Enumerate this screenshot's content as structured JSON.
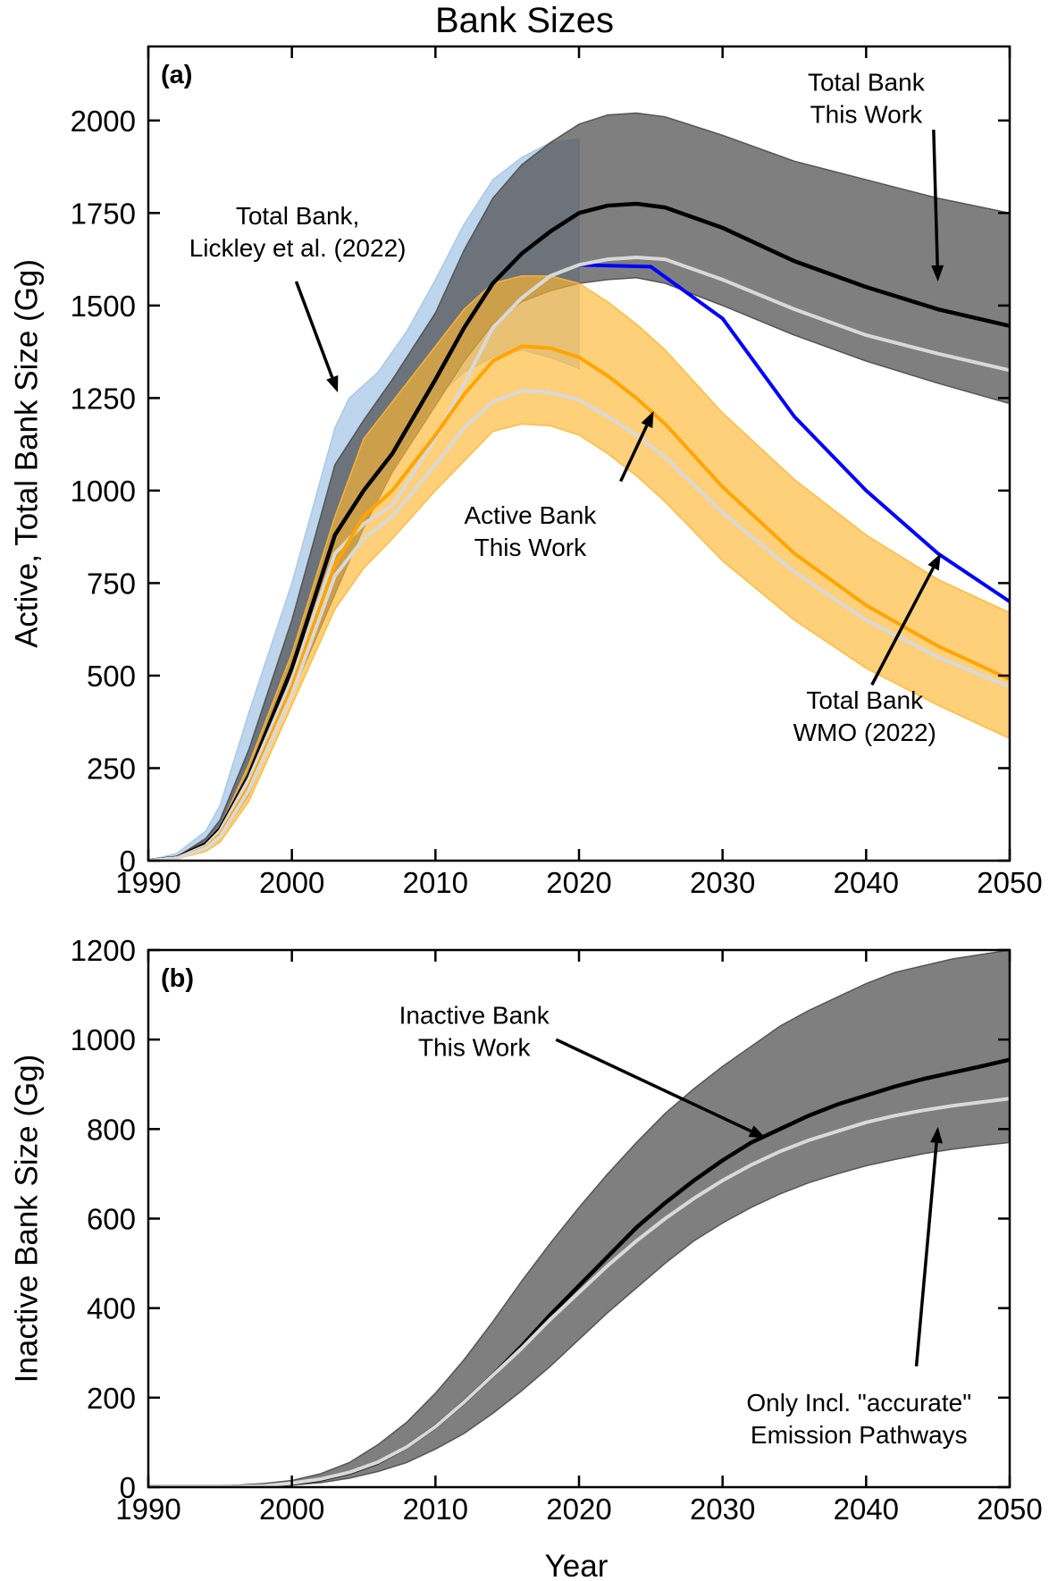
{
  "figure": {
    "title": "Bank Sizes",
    "xlabel": "Year"
  },
  "colors": {
    "this_work_line": "#000000",
    "this_work_band": "#4d4d4d",
    "accurate_pathways_line": "#d9d9d9",
    "active_line": "#ffa500",
    "active_band": "#ffb733",
    "lickley_band": "#a7c7e7",
    "wmo_line": "#0000ff"
  },
  "chart_data": [
    {
      "id": "panel_a",
      "type": "area",
      "panel_label": "(a)",
      "ylabel": "Active, Total Bank Size (Gg)",
      "xlim": [
        1990,
        2050
      ],
      "ylim": [
        0,
        2200
      ],
      "xticks": [
        1990,
        2000,
        2010,
        2020,
        2030,
        2040,
        2050
      ],
      "yticks": [
        0,
        250,
        500,
        750,
        1000,
        1250,
        1500,
        1750,
        2000
      ],
      "grid": false,
      "bands": [
        {
          "name": "Total Bank, Lickley et al. (2022)",
          "color": "#a7c7e7",
          "opacity": 0.75,
          "x": [
            1990,
            1992,
            1994,
            1995,
            1997,
            2000,
            2003,
            2004,
            2006,
            2008,
            2010,
            2012,
            2014,
            2016,
            2018,
            2020
          ],
          "lower": [
            0,
            10,
            40,
            80,
            220,
            480,
            720,
            830,
            990,
            1130,
            1250,
            1320,
            1360,
            1380,
            1360,
            1330
          ],
          "upper": [
            0,
            20,
            80,
            150,
            400,
            750,
            1170,
            1250,
            1320,
            1430,
            1570,
            1720,
            1840,
            1900,
            1940,
            1950
          ]
        },
        {
          "name": "Total Bank This Work",
          "color": "#4d4d4d",
          "opacity": 0.72,
          "x": [
            1990,
            1992,
            1994,
            1995,
            1997,
            2000,
            2003,
            2005,
            2007,
            2010,
            2012,
            2014,
            2016,
            2018,
            2020,
            2022,
            2024,
            2026,
            2030,
            2035,
            2040,
            2045,
            2050
          ],
          "lower": [
            0,
            5,
            30,
            60,
            180,
            450,
            720,
            900,
            1050,
            1230,
            1350,
            1450,
            1510,
            1540,
            1560,
            1570,
            1575,
            1560,
            1500,
            1420,
            1350,
            1290,
            1235
          ],
          "upper": [
            0,
            10,
            60,
            110,
            300,
            650,
            1070,
            1190,
            1300,
            1480,
            1650,
            1790,
            1880,
            1940,
            1990,
            2015,
            2020,
            2010,
            1960,
            1890,
            1840,
            1790,
            1750
          ]
        },
        {
          "name": "Active Bank This Work",
          "color": "#ffb733",
          "opacity": 0.65,
          "x": [
            1990,
            1992,
            1994,
            1995,
            1997,
            2000,
            2003,
            2005,
            2007,
            2010,
            2012,
            2014,
            2016,
            2018,
            2020,
            2022,
            2024,
            2026,
            2030,
            2035,
            2040,
            2045,
            2050
          ],
          "lower": [
            0,
            5,
            25,
            50,
            160,
            420,
            680,
            790,
            870,
            1000,
            1080,
            1160,
            1180,
            1175,
            1150,
            1100,
            1040,
            970,
            810,
            650,
            520,
            420,
            330
          ],
          "upper": [
            0,
            10,
            45,
            90,
            260,
            560,
            930,
            1140,
            1240,
            1390,
            1490,
            1560,
            1580,
            1580,
            1560,
            1510,
            1450,
            1380,
            1210,
            1030,
            880,
            760,
            670
          ]
        }
      ],
      "lines": [
        {
          "name": "Total Bank WMO (2022)",
          "color": "#0000ff",
          "width": 4,
          "x": [
            2020,
            2025,
            2030,
            2035,
            2040,
            2045,
            2050
          ],
          "y": [
            1610,
            1605,
            1465,
            1200,
            1000,
            830,
            700
          ]
        },
        {
          "name": "Total Bank This Work",
          "color": "#000000",
          "width": 4.5,
          "x": [
            1990,
            1992,
            1994,
            1995,
            1997,
            2000,
            2003,
            2005,
            2007,
            2010,
            2012,
            2014,
            2016,
            2018,
            2020,
            2022,
            2024,
            2026,
            2030,
            2035,
            2040,
            2045,
            2050
          ],
          "y": [
            0,
            8,
            45,
            85,
            230,
            520,
            880,
            1000,
            1100,
            1300,
            1440,
            1560,
            1640,
            1700,
            1750,
            1770,
            1775,
            1765,
            1710,
            1620,
            1550,
            1490,
            1445
          ]
        },
        {
          "name": "Total Bank (accurate pathways)",
          "color": "#d9d9d9",
          "width": 4,
          "x": [
            1990,
            1992,
            1994,
            1995,
            1997,
            2000,
            2003,
            2005,
            2007,
            2010,
            2012,
            2014,
            2016,
            2018,
            2020,
            2022,
            2024,
            2026,
            2030,
            2035,
            2040,
            2045,
            2050
          ],
          "y": [
            0,
            7,
            40,
            80,
            220,
            490,
            830,
            910,
            960,
            1140,
            1290,
            1440,
            1520,
            1580,
            1610,
            1625,
            1630,
            1625,
            1570,
            1490,
            1420,
            1370,
            1325
          ]
        },
        {
          "name": "Active Bank This Work",
          "color": "#ffa500",
          "width": 4,
          "x": [
            1990,
            1992,
            1994,
            1995,
            1997,
            2000,
            2003,
            2005,
            2007,
            2010,
            2012,
            2014,
            2016,
            2018,
            2020,
            2022,
            2024,
            2026,
            2030,
            2035,
            2040,
            2045,
            2050
          ],
          "y": [
            0,
            7,
            35,
            70,
            200,
            470,
            800,
            930,
            1000,
            1150,
            1260,
            1350,
            1390,
            1385,
            1360,
            1310,
            1250,
            1180,
            1010,
            830,
            690,
            580,
            490
          ]
        },
        {
          "name": "Active Bank (accurate pathways)",
          "color": "#d9d9d9",
          "width": 4,
          "x": [
            1990,
            1992,
            1994,
            1995,
            1997,
            2000,
            2003,
            2005,
            2007,
            2010,
            2012,
            2014,
            2016,
            2018,
            2020,
            2022,
            2024,
            2026,
            2030,
            2035,
            2040,
            2045,
            2050
          ],
          "y": [
            0,
            7,
            33,
            65,
            190,
            450,
            770,
            870,
            930,
            1070,
            1170,
            1240,
            1270,
            1265,
            1245,
            1200,
            1150,
            1090,
            940,
            780,
            650,
            550,
            470
          ]
        }
      ],
      "annotations": [
        {
          "lines": [
            "Total Bank",
            "This Work"
          ],
          "text_x": 2040,
          "text_y": 2080,
          "arrow_from": [
            2044.7,
            1975
          ],
          "arrow_to": [
            2045,
            1565
          ]
        },
        {
          "lines": [
            "Total Bank,",
            "Lickley et al. (2022)"
          ],
          "text_x": 2000.4,
          "text_y": 1720,
          "arrow_from": [
            2000.3,
            1565
          ],
          "arrow_to": [
            2003.2,
            1265
          ]
        },
        {
          "lines": [
            "Active Bank",
            "This Work"
          ],
          "text_x": 2016.6,
          "text_y": 910,
          "arrow_from": [
            2022.9,
            1025
          ],
          "arrow_to": [
            2025.2,
            1215
          ]
        },
        {
          "lines": [
            "Total Bank",
            "WMO (2022)"
          ],
          "text_x": 2039.9,
          "text_y": 410,
          "arrow_from": [
            2040.4,
            475
          ],
          "arrow_to": [
            2045.2,
            830
          ]
        }
      ]
    },
    {
      "id": "panel_b",
      "type": "area",
      "panel_label": "(b)",
      "ylabel": "Inactive Bank Size (Gg)",
      "xlim": [
        1990,
        2050
      ],
      "ylim": [
        0,
        1200
      ],
      "xticks": [
        1990,
        2000,
        2010,
        2020,
        2030,
        2040,
        2050
      ],
      "yticks": [
        0,
        200,
        400,
        600,
        800,
        1000,
        1200
      ],
      "grid": false,
      "bands": [
        {
          "name": "Inactive Bank This Work",
          "color": "#4d4d4d",
          "opacity": 0.72,
          "x": [
            1990,
            1995,
            1998,
            2000,
            2002,
            2004,
            2006,
            2008,
            2010,
            2012,
            2014,
            2016,
            2018,
            2020,
            2022,
            2024,
            2026,
            2028,
            2030,
            2032,
            2034,
            2036,
            2038,
            2040,
            2042,
            2044,
            2046,
            2048,
            2050
          ],
          "lower": [
            0,
            0,
            2,
            5,
            10,
            20,
            35,
            55,
            85,
            120,
            165,
            215,
            270,
            330,
            390,
            445,
            500,
            550,
            590,
            625,
            655,
            680,
            700,
            718,
            732,
            745,
            755,
            763,
            770
          ],
          "upper": [
            0,
            2,
            8,
            15,
            30,
            55,
            95,
            145,
            210,
            285,
            370,
            460,
            545,
            625,
            700,
            770,
            835,
            890,
            940,
            985,
            1030,
            1065,
            1095,
            1125,
            1150,
            1165,
            1180,
            1190,
            1200
          ]
        }
      ],
      "lines": [
        {
          "name": "Inactive Bank This Work",
          "color": "#000000",
          "width": 4.5,
          "x": [
            1990,
            1995,
            1998,
            2000,
            2002,
            2004,
            2006,
            2008,
            2010,
            2012,
            2014,
            2016,
            2018,
            2020,
            2022,
            2024,
            2026,
            2028,
            2030,
            2032,
            2034,
            2036,
            2038,
            2040,
            2042,
            2044,
            2046,
            2048,
            2050
          ],
          "y": [
            0,
            0,
            3,
            8,
            17,
            32,
            55,
            90,
            135,
            190,
            250,
            315,
            385,
            450,
            515,
            580,
            635,
            685,
            730,
            770,
            800,
            830,
            855,
            875,
            895,
            912,
            926,
            940,
            955
          ]
        },
        {
          "name": "Inactive Bank (accurate pathways)",
          "color": "#d9d9d9",
          "width": 4,
          "x": [
            1990,
            1995,
            1998,
            2000,
            2002,
            2004,
            2006,
            2008,
            2010,
            2012,
            2014,
            2016,
            2018,
            2020,
            2022,
            2024,
            2026,
            2028,
            2030,
            2032,
            2034,
            2036,
            2038,
            2040,
            2042,
            2044,
            2046,
            2048,
            2050
          ],
          "y": [
            0,
            0,
            3,
            9,
            18,
            33,
            56,
            90,
            135,
            190,
            250,
            310,
            375,
            435,
            495,
            550,
            600,
            645,
            685,
            720,
            750,
            775,
            795,
            815,
            830,
            842,
            852,
            860,
            868
          ]
        }
      ],
      "annotations": [
        {
          "lines": [
            "Inactive Bank",
            "This Work"
          ],
          "text_x": 2012.7,
          "text_y": 1035,
          "arrow_from": [
            2018.4,
            1000
          ],
          "arrow_to": [
            2033,
            780
          ]
        },
        {
          "lines": [
            "Only Incl. \"accurate\"",
            "Emission Pathways"
          ],
          "text_x": 2039.5,
          "text_y": 170,
          "arrow_from": [
            2043.5,
            270
          ],
          "arrow_to": [
            2045,
            805
          ]
        }
      ]
    }
  ]
}
